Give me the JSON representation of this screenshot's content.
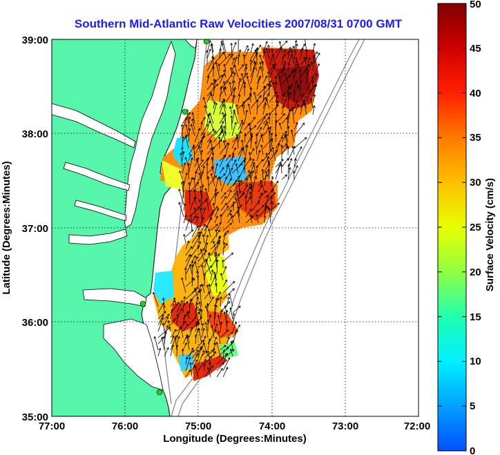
{
  "title": "Southern Mid-Atlantic Raw Velocities 2007/08/31 0700 GMT",
  "x_axis": {
    "label": "Longitude (Degrees:Minutes)",
    "ticks": [
      "77:00",
      "76:00",
      "75:00",
      "74:00",
      "73:00",
      "72:00"
    ]
  },
  "y_axis": {
    "label": "Latitude (Degrees:Minutes)",
    "ticks": [
      "39:00",
      "38:00",
      "37:00",
      "36:00",
      "35:00"
    ]
  },
  "colorbar": {
    "label": "Surface Velocity (cm/s)",
    "ticks": [
      "0",
      "5",
      "10",
      "15",
      "20",
      "25",
      "30",
      "35",
      "40",
      "45",
      "50"
    ],
    "range": [
      0,
      50
    ]
  },
  "map": {
    "lon_range": [
      -77,
      -72
    ],
    "lat_range": [
      35,
      39
    ],
    "grid": "dotted",
    "land_color": "#55f5aa",
    "water_color": "#ffffff",
    "station_color": "#22cc22"
  }
}
